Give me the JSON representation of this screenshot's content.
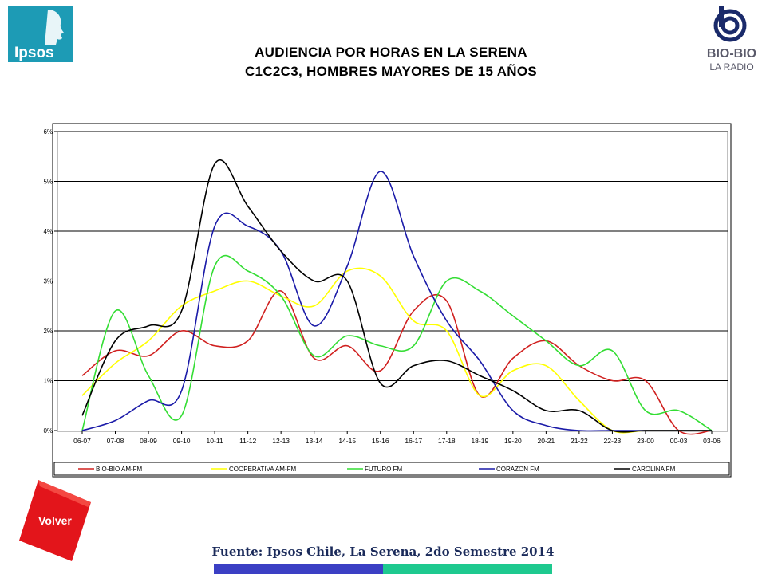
{
  "logos": {
    "ipsos": "Ipsos",
    "biobio": "BIO-BIO",
    "biobio_sub": "LA RADIO"
  },
  "title_line1": "AUDIENCIA POR HORAS EN LA SERENA",
  "title_line2": "C1C2C3, HOMBRES MAYORES DE 15 AÑOS",
  "button_volver": "Volver",
  "source": "Fuente: Ipsos Chile, La Serena, 2do Semestre 2014",
  "colors": {
    "bar_left": "#3b3fc4",
    "bar_right": "#1ec98f",
    "volver": "#e3151b",
    "ipsos": "#1d9bb5"
  },
  "chart_data": {
    "type": "line",
    "smooth": true,
    "categories": [
      "06-07",
      "07-08",
      "08-09",
      "09-10",
      "10-11",
      "11-12",
      "12-13",
      "13-14",
      "14-15",
      "15-16",
      "16-17",
      "17-18",
      "18-19",
      "19-20",
      "20-21",
      "21-22",
      "22-23",
      "23-00",
      "00-03",
      "03-06"
    ],
    "yticks": [
      "0%",
      "1%",
      "2%",
      "3%",
      "4%",
      "5%",
      "6%"
    ],
    "ylim": [
      0,
      6
    ],
    "grid": true,
    "legend": "bottom",
    "series": [
      {
        "name": "BIO-BIO AM-FM",
        "color": "#d0201f",
        "values": [
          1.1,
          1.6,
          1.5,
          2.0,
          1.7,
          1.8,
          2.8,
          1.45,
          1.7,
          1.2,
          2.4,
          2.6,
          0.7,
          1.45,
          1.8,
          1.3,
          1.0,
          1.0,
          0.0,
          0.0
        ]
      },
      {
        "name": "COOPERATIVA AM-FM",
        "color": "#ffff00",
        "values": [
          0.7,
          1.35,
          1.8,
          2.5,
          2.8,
          3.0,
          2.7,
          2.5,
          3.2,
          3.1,
          2.2,
          2.0,
          0.7,
          1.2,
          1.3,
          0.6,
          0.0,
          0.0,
          0.0,
          0.0
        ]
      },
      {
        "name": "FUTURO FM",
        "color": "#33dd33",
        "values": [
          0.0,
          2.4,
          1.1,
          0.3,
          3.3,
          3.2,
          2.7,
          1.5,
          1.9,
          1.7,
          1.7,
          3.0,
          2.8,
          2.3,
          1.8,
          1.3,
          1.6,
          0.4,
          0.4,
          0.0
        ]
      },
      {
        "name": "CORAZON FM",
        "color": "#1a1aa8",
        "values": [
          0.0,
          0.2,
          0.6,
          0.8,
          4.1,
          4.1,
          3.6,
          2.1,
          3.3,
          5.2,
          3.5,
          2.2,
          1.4,
          0.4,
          0.1,
          0.0,
          0.0,
          0.0,
          0.0,
          0.0
        ]
      },
      {
        "name": "CAROLINA FM",
        "color": "#000000",
        "values": [
          0.3,
          1.8,
          2.1,
          2.4,
          5.35,
          4.5,
          3.6,
          3.0,
          3.0,
          0.95,
          1.3,
          1.4,
          1.1,
          0.8,
          0.4,
          0.4,
          0.0,
          0.0,
          0.0,
          0.0
        ]
      }
    ]
  }
}
